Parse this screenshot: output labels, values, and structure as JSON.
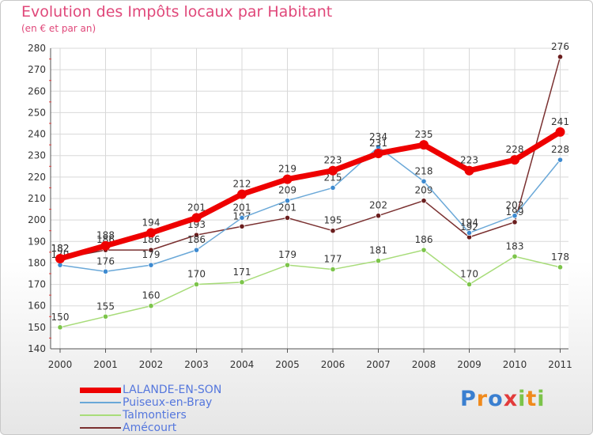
{
  "chart_data": {
    "type": "line",
    "title": "Evolution des Impôts locaux par Habitant",
    "subtitle": "(en € et par an)",
    "xlabel": "",
    "ylabel": "",
    "categories": [
      "2000",
      "2001",
      "2002",
      "2003",
      "2004",
      "2005",
      "2006",
      "2007",
      "2008",
      "2009",
      "2010",
      "2011"
    ],
    "ylim": [
      140,
      280
    ],
    "yticks": [
      140,
      150,
      160,
      170,
      180,
      190,
      200,
      210,
      220,
      230,
      240,
      250,
      260,
      270,
      280
    ],
    "grid": true,
    "legend_position": "bottom-left",
    "series": [
      {
        "name": "Talmontiers",
        "color": "#a8dc7a",
        "point_color": "#7cc44a",
        "values": [
          150,
          155,
          160,
          170,
          171,
          179,
          177,
          181,
          186,
          170,
          183,
          178
        ]
      },
      {
        "name": "Amécourt",
        "color": "#7a3030",
        "point_color": "#6b1e1e",
        "values": [
          182,
          186,
          186,
          193,
          197,
          201,
          195,
          202,
          209,
          192,
          199,
          276
        ]
      },
      {
        "name": "Puiseux-en-Bray",
        "color": "#6aa8d8",
        "point_color": "#3d8ad0",
        "values": [
          179,
          176,
          179,
          186,
          201,
          209,
          215,
          234,
          218,
          194,
          202,
          228
        ]
      },
      {
        "name": "LALANDE-EN-SON",
        "color": "#ee0000",
        "point_color": "#ee0000",
        "values": [
          182,
          188,
          194,
          201,
          212,
          219,
          223,
          231,
          235,
          223,
          228,
          241
        ]
      }
    ],
    "legend": [
      {
        "name": "LALANDE-EN-SON",
        "color": "#ee0000",
        "text_color": "#5577dd"
      },
      {
        "name": "Puiseux-en-Bray",
        "color": "#6aa8d8",
        "text_color": "#5577dd"
      },
      {
        "name": "Talmontiers",
        "color": "#a8dc7a",
        "text_color": "#5577dd"
      },
      {
        "name": "Amécourt",
        "color": "#7a3030",
        "text_color": "#5577dd"
      }
    ]
  },
  "logo": {
    "letters": [
      "P",
      "r",
      "o",
      "x",
      "i",
      "t",
      "i"
    ],
    "colors": [
      "#3a7fd0",
      "#f08a1c",
      "#3a7fd0",
      "#e23b3b",
      "#7cc44a",
      "#f08a1c",
      "#7cc44a"
    ]
  }
}
